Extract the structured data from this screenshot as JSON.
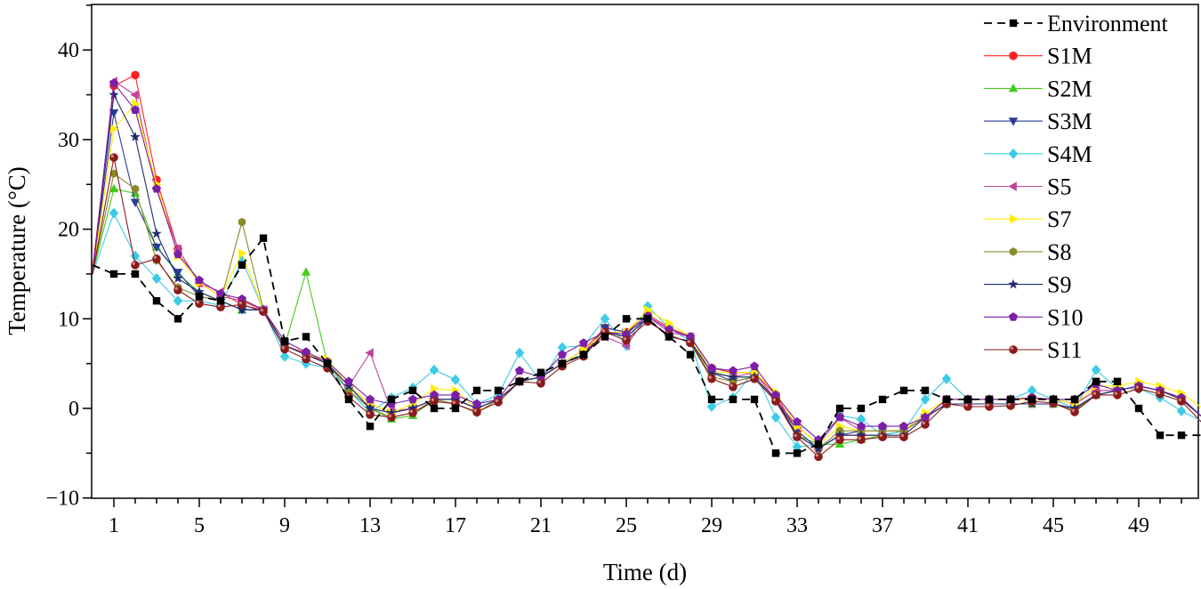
{
  "chart_data": {
    "type": "line",
    "title": "",
    "xlabel": "Time (d)",
    "ylabel": "Temperature (°C)",
    "xlim": [
      0,
      52
    ],
    "ylim": [
      -10,
      45
    ],
    "xticks": [
      1,
      5,
      9,
      13,
      17,
      21,
      25,
      29,
      33,
      37,
      41,
      45,
      49
    ],
    "yticks": [
      -10,
      0,
      10,
      20,
      30,
      40
    ],
    "legend_position": "top-right",
    "grid": false,
    "x": [
      0,
      1,
      2,
      3,
      4,
      5,
      6,
      7,
      8,
      9,
      10,
      11,
      12,
      13,
      14,
      15,
      16,
      17,
      18,
      19,
      20,
      21,
      22,
      23,
      24,
      25,
      26,
      27,
      28,
      29,
      30,
      31,
      32,
      33,
      34,
      35,
      36,
      37,
      38,
      39,
      40,
      41,
      42,
      43,
      44,
      45,
      46,
      47,
      48,
      49,
      50,
      51,
      52
    ],
    "series": [
      {
        "name": "Environment",
        "color": "#000000",
        "marker": "square",
        "dashed": true,
        "values": [
          16,
          15,
          15,
          12,
          10,
          12.5,
          12,
          16,
          19,
          7.5,
          8,
          5,
          1,
          -2,
          1,
          2,
          0,
          0,
          2,
          2,
          3,
          4,
          5,
          6,
          8,
          10,
          10,
          8,
          6,
          1,
          1,
          1,
          -5,
          -5,
          -4,
          0,
          0,
          1,
          2,
          2,
          1,
          1,
          1,
          1,
          1,
          1,
          1,
          3,
          3,
          0,
          -3,
          -3,
          -3
        ]
      },
      {
        "name": "S1M",
        "color": "#ff2020",
        "marker": "circle",
        "values": [
          15.5,
          36,
          37.2,
          25.5,
          17.8,
          14,
          12.5,
          12,
          11,
          7,
          6.2,
          5,
          2.5,
          0.5,
          -0.5,
          0,
          1,
          1,
          0,
          1,
          3,
          3.5,
          5,
          6.5,
          9,
          8.5,
          10.5,
          9,
          8,
          4.5,
          4,
          4,
          1.5,
          -2.5,
          -4.5,
          -3,
          -3,
          -3,
          -2.5,
          -1,
          1,
          1,
          1,
          1,
          1.2,
          1,
          0.5,
          2,
          2,
          2.5,
          2,
          1,
          -1
        ]
      },
      {
        "name": "S2M",
        "color": "#44cc22",
        "marker": "triangle-up",
        "values": [
          15,
          24.5,
          24,
          18,
          15,
          13,
          12,
          11,
          11,
          7,
          15.2,
          5,
          2.5,
          0,
          -1.2,
          -0.8,
          1,
          1,
          0,
          1,
          3,
          3.5,
          5,
          6,
          8.5,
          8,
          10,
          8,
          7.5,
          4,
          3.5,
          3.5,
          1,
          -3,
          -4,
          -4,
          -3.5,
          -3,
          -2.5,
          -1,
          0.5,
          0.5,
          0.5,
          0.5,
          0.5,
          0.5,
          0,
          1.5,
          2,
          2.5,
          2,
          1,
          -1
        ]
      },
      {
        "name": "S3M",
        "color": "#2a3c9a",
        "marker": "triangle-down",
        "values": [
          15,
          33,
          23,
          18,
          15.2,
          12.5,
          12,
          11,
          11,
          7,
          6,
          5,
          2,
          0,
          -0.5,
          0,
          1,
          1,
          0,
          1,
          3,
          3.5,
          5,
          6,
          9,
          8.5,
          10,
          8,
          7.5,
          4,
          3,
          3.5,
          1,
          -2.5,
          -4.5,
          -3,
          -2.5,
          -2.5,
          -2.5,
          -1,
          0.5,
          0.5,
          0.5,
          0.5,
          0.5,
          0.5,
          0,
          1.5,
          2,
          2.5,
          2,
          1,
          -1
        ]
      },
      {
        "name": "S4M",
        "color": "#3ccce6",
        "marker": "diamond",
        "values": [
          15,
          21.8,
          17,
          14.5,
          12,
          12,
          11.5,
          16.5,
          11,
          5.8,
          5,
          4.5,
          2,
          -0.5,
          1.2,
          2.3,
          4.3,
          3.2,
          0.5,
          1.5,
          6.2,
          3,
          6.8,
          7,
          10,
          7,
          11.4,
          9,
          7.5,
          0.2,
          1.2,
          4.2,
          -1,
          -4.3,
          -4,
          -0.8,
          -1.2,
          -3,
          -2.5,
          1,
          3.3,
          1,
          1,
          1,
          2,
          1,
          0,
          4.3,
          2.2,
          2.2,
          1.2,
          -0.3,
          -1.5
        ]
      },
      {
        "name": "S5",
        "color": "#c0449a",
        "marker": "triangle-left",
        "values": [
          15,
          36.5,
          35,
          24.5,
          17.8,
          14,
          13,
          11.5,
          11,
          7,
          6,
          5,
          2.5,
          6.2,
          -0.3,
          0,
          1,
          1,
          0,
          1,
          3,
          3.5,
          5,
          6.5,
          8,
          7,
          10.3,
          8.5,
          8,
          4,
          3.5,
          4,
          1,
          -2,
          -4,
          -1,
          -2.5,
          -2.5,
          -2.5,
          -1,
          1,
          1,
          1,
          1,
          1,
          1,
          0.5,
          2,
          2,
          2.5,
          2,
          1,
          -1
        ]
      },
      {
        "name": "S7",
        "color": "#ffee00",
        "marker": "triangle-right",
        "values": [
          15,
          31.2,
          34,
          25,
          17,
          14,
          12.5,
          17.3,
          11,
          7,
          6,
          5.5,
          2.5,
          0.5,
          -0.5,
          0.5,
          2.2,
          2,
          0,
          1,
          3,
          3.5,
          5,
          6.5,
          8.5,
          8.5,
          11,
          9.5,
          8,
          4,
          4,
          4,
          1.8,
          -2,
          -4,
          -2,
          -2.5,
          -2.5,
          -2.5,
          -0.5,
          1,
          1,
          1,
          1,
          1,
          1,
          0.5,
          2.5,
          2.5,
          3,
          2.5,
          1.7,
          0
        ]
      },
      {
        "name": "S8",
        "color": "#8b8b2a",
        "marker": "hexagon",
        "values": [
          15,
          26.2,
          24.5,
          16.5,
          13.5,
          12.5,
          12,
          20.8,
          11,
          7,
          6,
          5,
          2,
          0,
          -1,
          -0.5,
          1,
          0.5,
          -0.5,
          1,
          3,
          3.5,
          5,
          6,
          8.5,
          8,
          10,
          8,
          7.5,
          3.5,
          3,
          3.5,
          1,
          -3,
          -4.5,
          -2.5,
          -2.5,
          -2.5,
          -2.5,
          -1,
          0.5,
          0.5,
          0.5,
          0.5,
          0.5,
          0.5,
          -0.2,
          1.5,
          2,
          2.5,
          2,
          1,
          -1
        ]
      },
      {
        "name": "S9",
        "color": "#1e2a70",
        "marker": "star",
        "values": [
          15,
          35,
          30.3,
          19.5,
          14.5,
          13,
          12,
          11,
          11,
          7,
          6,
          5,
          2.5,
          0,
          -0.5,
          0,
          1,
          1,
          0,
          1,
          3,
          3.5,
          5,
          6,
          8.5,
          8,
          10,
          8,
          7.5,
          4,
          3.5,
          3.5,
          1,
          -3,
          -4.5,
          -3,
          -3,
          -3,
          -3,
          -1,
          0.5,
          0.5,
          0.5,
          0.5,
          0.5,
          0.5,
          0,
          1.5,
          2,
          2.5,
          2,
          1,
          -1
        ]
      },
      {
        "name": "S10",
        "color": "#7b1fa8",
        "marker": "pentagon",
        "values": [
          15,
          36.3,
          33.3,
          24.5,
          17.2,
          14.3,
          12.8,
          12.2,
          11,
          7.5,
          6.3,
          5.2,
          3,
          1,
          0.5,
          1,
          1.5,
          1.5,
          0.5,
          1,
          4.2,
          3.5,
          6,
          7.3,
          8.5,
          8.3,
          10.3,
          8.8,
          8,
          4.5,
          4.2,
          4.7,
          1.5,
          -1.5,
          -3.5,
          -1,
          -2,
          -2,
          -2,
          -1,
          1,
          1,
          1,
          1,
          1.2,
          1,
          1,
          2.7,
          2,
          2.5,
          2,
          1.2,
          -1
        ]
      },
      {
        "name": "S11",
        "color": "#8b1a1a",
        "marker": "ball",
        "values": [
          15,
          28,
          16,
          16.7,
          13.2,
          11.7,
          11.3,
          11.6,
          10.8,
          6.6,
          5.5,
          4.5,
          1.3,
          -0.7,
          -1,
          -0.5,
          0.8,
          0.5,
          -0.4,
          0.7,
          3,
          2.8,
          4.7,
          5.8,
          8.5,
          7.6,
          9.7,
          8.2,
          7.3,
          3.3,
          2.4,
          3.3,
          0.8,
          -3.2,
          -5.4,
          -3.5,
          -3.5,
          -3.2,
          -3.2,
          -1.8,
          0.5,
          0.2,
          0.2,
          0.3,
          0.8,
          0.6,
          -0.4,
          1.5,
          1.5,
          2.2,
          1.6,
          0.8,
          -1.7
        ]
      }
    ]
  }
}
